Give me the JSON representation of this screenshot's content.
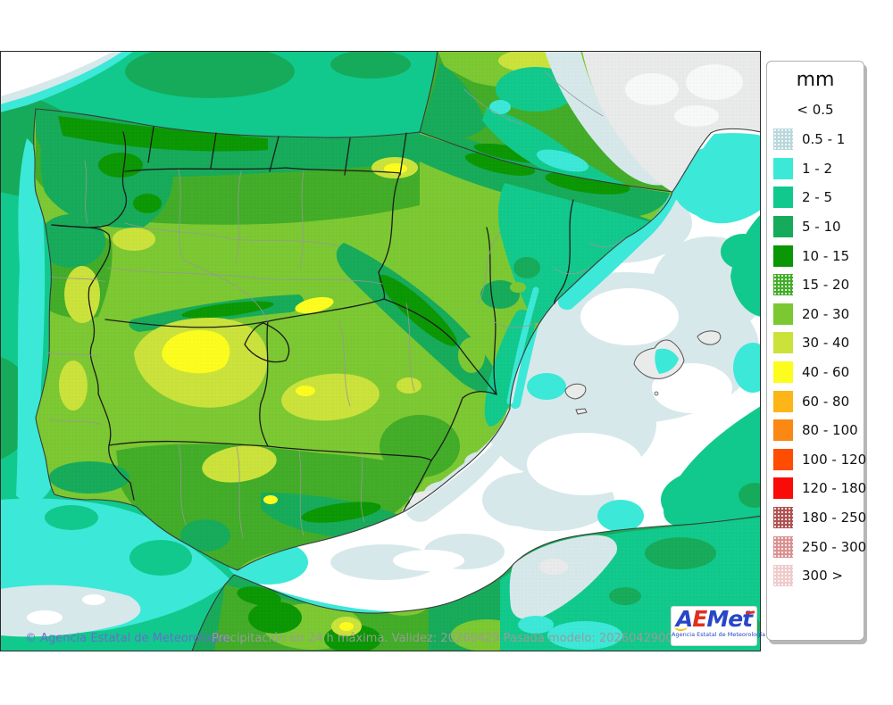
{
  "map": {
    "attribution": "© Agencia Estatal de Meteorología",
    "caption": "Precipitación en 24 h máxima. Validez: 20260429 Pasada modelo: 2026042900",
    "palette": {
      "sea_pale": "#d7e8ea",
      "land_dry": "#e9eaea",
      "coastline": "#3a3a3a",
      "border_region": "#1c1c1c",
      "border_province": "#979797",
      "frame": "#2a2a2a",
      "attribution_color": "#6a6ad4",
      "caption_color": "#9a9a9a"
    }
  },
  "legend": {
    "title": "mm",
    "entries": [
      {
        "id": "lt05",
        "label": "< 0.5",
        "color": null
      },
      {
        "id": "c05_1",
        "label": "0.5 - 1",
        "color": "#b9d7db",
        "stipple": true
      },
      {
        "id": "c1_2",
        "label": "1 - 2",
        "color": "#3ce8d8"
      },
      {
        "id": "c2_5",
        "label": "2 - 5",
        "color": "#11c98c"
      },
      {
        "id": "c5_10",
        "label": "5 - 10",
        "color": "#16ab5a"
      },
      {
        "id": "c10_15",
        "label": "10 - 15",
        "color": "#0b9703"
      },
      {
        "id": "c15_20",
        "label": "15 - 20",
        "color": "#42ac28",
        "stipple": true
      },
      {
        "id": "c20_30",
        "label": "20 - 30",
        "color": "#7cc832"
      },
      {
        "id": "c30_40",
        "label": "30 - 40",
        "color": "#cbe23b"
      },
      {
        "id": "c40_60",
        "label": "40 - 60",
        "color": "#fcfc1e"
      },
      {
        "id": "c60_80",
        "label": "60 - 80",
        "color": "#fdb517"
      },
      {
        "id": "c80_100",
        "label": "80 - 100",
        "color": "#fb8813"
      },
      {
        "id": "c100_120",
        "label": "100 - 120",
        "color": "#fe4d00"
      },
      {
        "id": "c120_180",
        "label": "120 - 180",
        "color": "#f90b07"
      },
      {
        "id": "c180_250",
        "label": "180 - 250",
        "color": "#ae5151",
        "stipple": true
      },
      {
        "id": "c250_300",
        "label": "250 - 300",
        "color": "#d99090",
        "stipple": true
      },
      {
        "id": "cgt300",
        "label": "300 >",
        "color": "#efcaca",
        "stipple": true
      }
    ]
  },
  "logo": {
    "letters": [
      "A",
      "E",
      "M",
      "e",
      "t"
    ],
    "subtitle": "Agencia Estatal de Meteorología"
  }
}
